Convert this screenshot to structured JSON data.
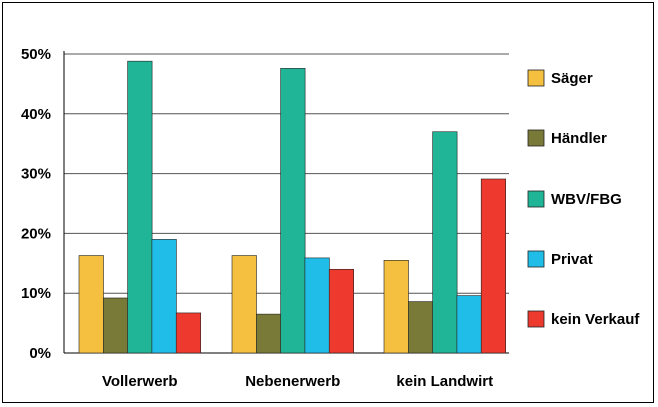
{
  "chart_data": {
    "type": "bar",
    "categories": [
      "Vollerwerb",
      "Nebenerwerb",
      "kein Landwirt"
    ],
    "series": [
      {
        "name": "Säger",
        "color": "#f5c040",
        "values": [
          16.3,
          16.3,
          15.5
        ]
      },
      {
        "name": "Händler",
        "color": "#7a7a38",
        "values": [
          9.2,
          6.5,
          8.6
        ]
      },
      {
        "name": "WBV/FBG",
        "color": "#1fb596",
        "values": [
          48.8,
          47.6,
          37.0
        ]
      },
      {
        "name": "Privat",
        "color": "#1fbde8",
        "values": [
          19.0,
          15.9,
          9.6
        ]
      },
      {
        "name": "kein Verkauf",
        "color": "#ee3a2e",
        "values": [
          6.7,
          14.0,
          29.1
        ]
      }
    ],
    "yticks": [
      "0%",
      "10%",
      "20%",
      "30%",
      "40%",
      "50%"
    ],
    "ylim": [
      0,
      50
    ],
    "grid": true,
    "legend": "right"
  }
}
